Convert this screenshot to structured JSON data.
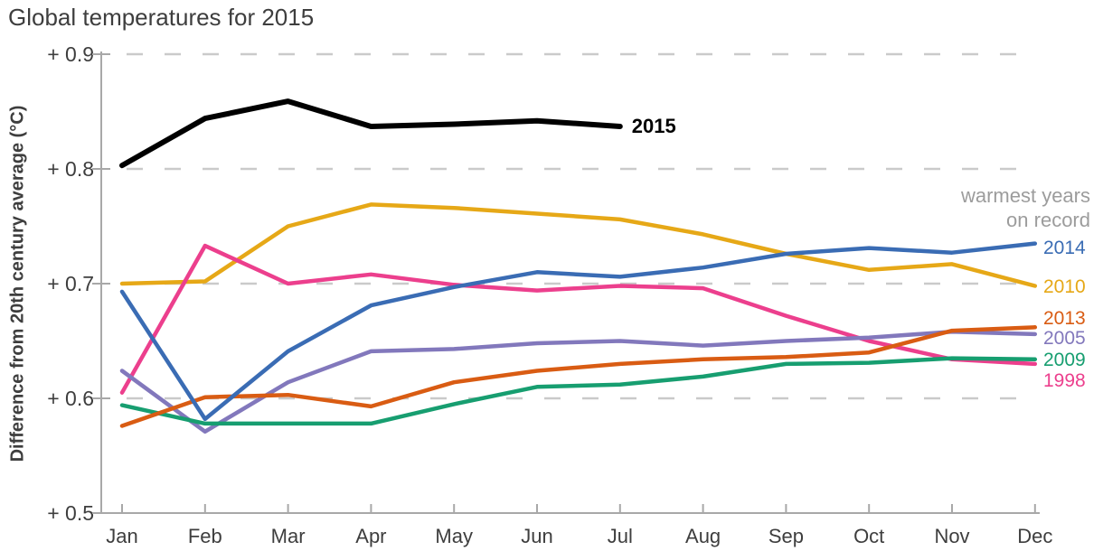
{
  "title": "Global temperatures for 2015",
  "annotation": {
    "line1": "warmest years",
    "line2": "on record"
  },
  "colors": {
    "axis": "#a8a8a8",
    "grid": "#cacaca",
    "text_dark": "#3e3e3e",
    "note_gray": "#9c9c9c",
    "current_year": "#000000"
  },
  "chart_data": {
    "type": "line",
    "title": "Global temperatures for 2015",
    "ylabel": "Difference from 20th century average (°C)",
    "xlabel": "",
    "categories": [
      "Jan",
      "Feb",
      "Mar",
      "Apr",
      "May",
      "Jun",
      "Jul",
      "Aug",
      "Sep",
      "Oct",
      "Nov",
      "Dec"
    ],
    "ylim": [
      0.5,
      0.9
    ],
    "ytick_values": [
      0.9,
      0.8,
      0.7,
      0.6,
      0.5
    ],
    "ytick_labels": [
      "+ 0.9",
      "+ 0.8",
      "+ 0.7",
      "+ 0.6",
      "+ 0.5"
    ],
    "gridline_values": [
      0.9,
      0.8,
      0.7,
      0.6
    ],
    "grid": "dashed horizontal",
    "legend_position": "right edge, each series labeled at line end",
    "legend_note": "warmest years on record",
    "series": [
      {
        "name": "2010",
        "color": "#e6a817",
        "label_side": "right",
        "values": [
          0.7,
          0.702,
          0.75,
          0.769,
          0.766,
          0.761,
          0.756,
          0.743,
          0.726,
          0.712,
          0.717,
          0.698
        ]
      },
      {
        "name": "1998",
        "color": "#ec3f8d",
        "label_side": "right",
        "values": [
          0.605,
          0.733,
          0.7,
          0.708,
          0.699,
          0.694,
          0.698,
          0.696,
          0.672,
          0.65,
          0.634,
          0.63
        ]
      },
      {
        "name": "2005",
        "color": "#8278bc",
        "label_side": "right",
        "values": [
          0.624,
          0.571,
          0.614,
          0.641,
          0.643,
          0.648,
          0.65,
          0.646,
          0.65,
          0.653,
          0.658,
          0.656
        ]
      },
      {
        "name": "2009",
        "color": "#179e70",
        "label_side": "right",
        "values": [
          0.594,
          0.578,
          0.578,
          0.578,
          0.595,
          0.61,
          0.612,
          0.619,
          0.63,
          0.631,
          0.635,
          0.634
        ]
      },
      {
        "name": "2013",
        "color": "#d95c13",
        "label_side": "right",
        "values": [
          0.576,
          0.601,
          0.603,
          0.593,
          0.614,
          0.624,
          0.63,
          0.634,
          0.636,
          0.64,
          0.659,
          0.662
        ]
      },
      {
        "name": "2014",
        "color": "#3a6cb4",
        "label_side": "right",
        "values": [
          0.693,
          0.582,
          0.641,
          0.681,
          0.697,
          0.71,
          0.706,
          0.714,
          0.726,
          0.731,
          0.727,
          0.735
        ]
      },
      {
        "name": "2015",
        "color": "#000000",
        "label_side": "end",
        "bold": true,
        "values": [
          0.803,
          0.844,
          0.859,
          0.837,
          0.839,
          0.842,
          0.837
        ]
      }
    ]
  }
}
